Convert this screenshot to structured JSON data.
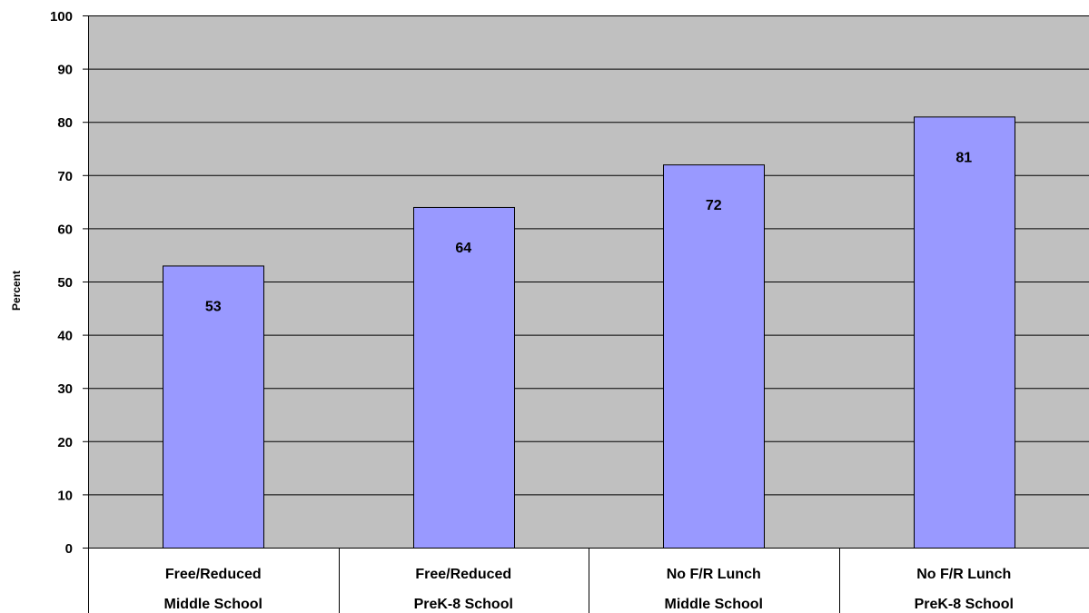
{
  "chart_data": {
    "type": "bar",
    "title": "",
    "xlabel": "",
    "ylabel": "Percent",
    "ylim": [
      0,
      100
    ],
    "yticks": [
      0,
      10,
      20,
      30,
      40,
      50,
      60,
      70,
      80,
      90,
      100
    ],
    "grid": true,
    "legend": "none",
    "categories": [
      [
        "Free/Reduced",
        "Middle School"
      ],
      [
        "Free/Reduced",
        "PreK-8 School"
      ],
      [
        "No F/R Lunch",
        "Middle School"
      ],
      [
        "No F/R Lunch",
        "PreK-8 School"
      ]
    ],
    "values": [
      53,
      64,
      72,
      81
    ],
    "data_labels": [
      "53",
      "64",
      "72",
      "81"
    ],
    "colors": {
      "plot_background": "#c0c0c0",
      "bar_fill": "#9999ff",
      "bar_stroke": "#000000",
      "gridline": "#000000"
    }
  }
}
